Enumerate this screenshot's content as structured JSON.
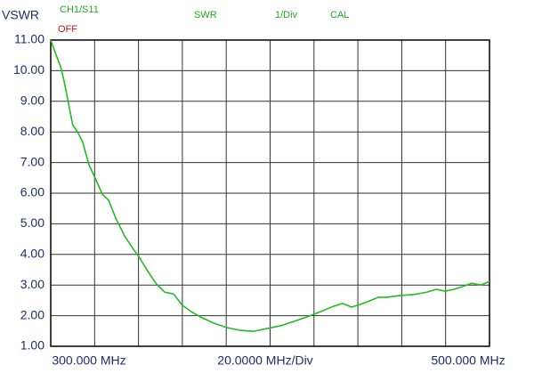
{
  "chart_data": {
    "type": "line",
    "y_label": "VSWR",
    "channel": "CH1/S11",
    "status": "OFF",
    "format": "SWR",
    "scale": "1/Div",
    "cal": "CAL",
    "x_start_label": "300.000 MHz",
    "x_scale_label": "20.0000 MHz/Div",
    "x_end_label": "500.000 MHz",
    "color": "#22bb22",
    "grid": true,
    "xlim": [
      300,
      500
    ],
    "xticks": [
      300,
      320,
      340,
      360,
      380,
      400,
      420,
      440,
      460,
      480,
      500
    ],
    "ylim": [
      1,
      11
    ],
    "yticks": [
      {
        "value": 1,
        "label": "1.00"
      },
      {
        "value": 2,
        "label": "2.00"
      },
      {
        "value": 3,
        "label": "3.00"
      },
      {
        "value": 4,
        "label": "4.00"
      },
      {
        "value": 5,
        "label": "5.00"
      },
      {
        "value": 6,
        "label": "6.00"
      },
      {
        "value": 7,
        "label": "7.00"
      },
      {
        "value": 8,
        "label": "8.00"
      },
      {
        "value": 9,
        "label": "9.00"
      },
      {
        "value": 10,
        "label": "10.00"
      },
      {
        "value": 11,
        "label": "11.00"
      }
    ],
    "x": [
      300,
      302,
      304.5,
      306,
      308,
      310,
      312.6,
      314.6,
      317.4,
      320.3,
      323.5,
      326.4,
      329.6,
      333.7,
      337.7,
      340.6,
      343.8,
      347.9,
      351.9,
      356,
      360,
      364.1,
      368.2,
      374.2,
      380.3,
      386.4,
      392.5,
      398.6,
      404.7,
      410.8,
      416.8,
      422.9,
      429,
      433.1,
      437.1,
      441.2,
      445.2,
      449.3,
      453.3,
      459.4,
      465.5,
      471.6,
      475.7,
      479.7,
      483.8,
      487.8,
      491.9,
      496,
      500
    ],
    "values": [
      11.0,
      10.6,
      10.13,
      9.69,
      8.97,
      8.24,
      7.95,
      7.66,
      6.93,
      6.49,
      5.97,
      5.77,
      5.19,
      4.6,
      4.17,
      3.88,
      3.5,
      3.06,
      2.77,
      2.71,
      2.34,
      2.13,
      1.96,
      1.76,
      1.61,
      1.52,
      1.49,
      1.58,
      1.67,
      1.81,
      1.96,
      2.13,
      2.31,
      2.4,
      2.28,
      2.37,
      2.48,
      2.6,
      2.6,
      2.66,
      2.69,
      2.77,
      2.86,
      2.8,
      2.86,
      2.95,
      3.06,
      3.0,
      3.12
    ]
  }
}
